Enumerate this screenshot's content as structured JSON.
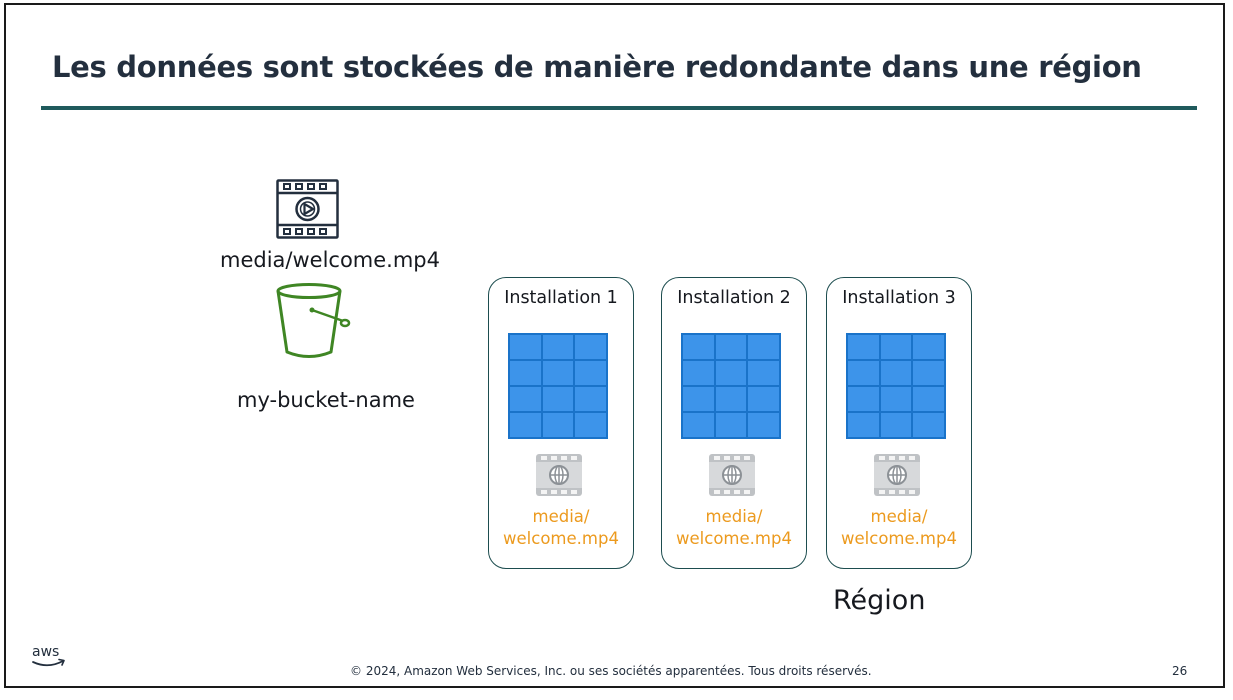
{
  "slide": {
    "title": "Les données sont stockées de manière redondante dans une région"
  },
  "object": {
    "icon": "video-file-icon",
    "label": "media/welcome.mp4"
  },
  "bucket": {
    "icon": "s3-bucket-icon",
    "label": "my-bucket-name"
  },
  "facilities": [
    {
      "name": "Installation 1",
      "replica_line1": "media/",
      "replica_line2": "welcome.mp4"
    },
    {
      "name": "Installation 2",
      "replica_line1": "media/",
      "replica_line2": "welcome.mp4"
    },
    {
      "name": "Installation 3",
      "replica_line1": "media/",
      "replica_line2": "welcome.mp4"
    }
  ],
  "region": {
    "label": "Région"
  },
  "footer": {
    "logo": "aws",
    "copyright": "© 2024, Amazon Web Services, Inc. ou ses sociétés apparentées. Tous droits réservés.",
    "page_number": "26"
  },
  "colors": {
    "title": "#232f3e",
    "title_rule": "#1f5a5c",
    "facility_border": "#1d4d4f",
    "grid_fill": "#3d94ea",
    "grid_line": "#1a73c9",
    "replica_text": "#ec9a1e",
    "bucket_green": "#3f8624"
  }
}
